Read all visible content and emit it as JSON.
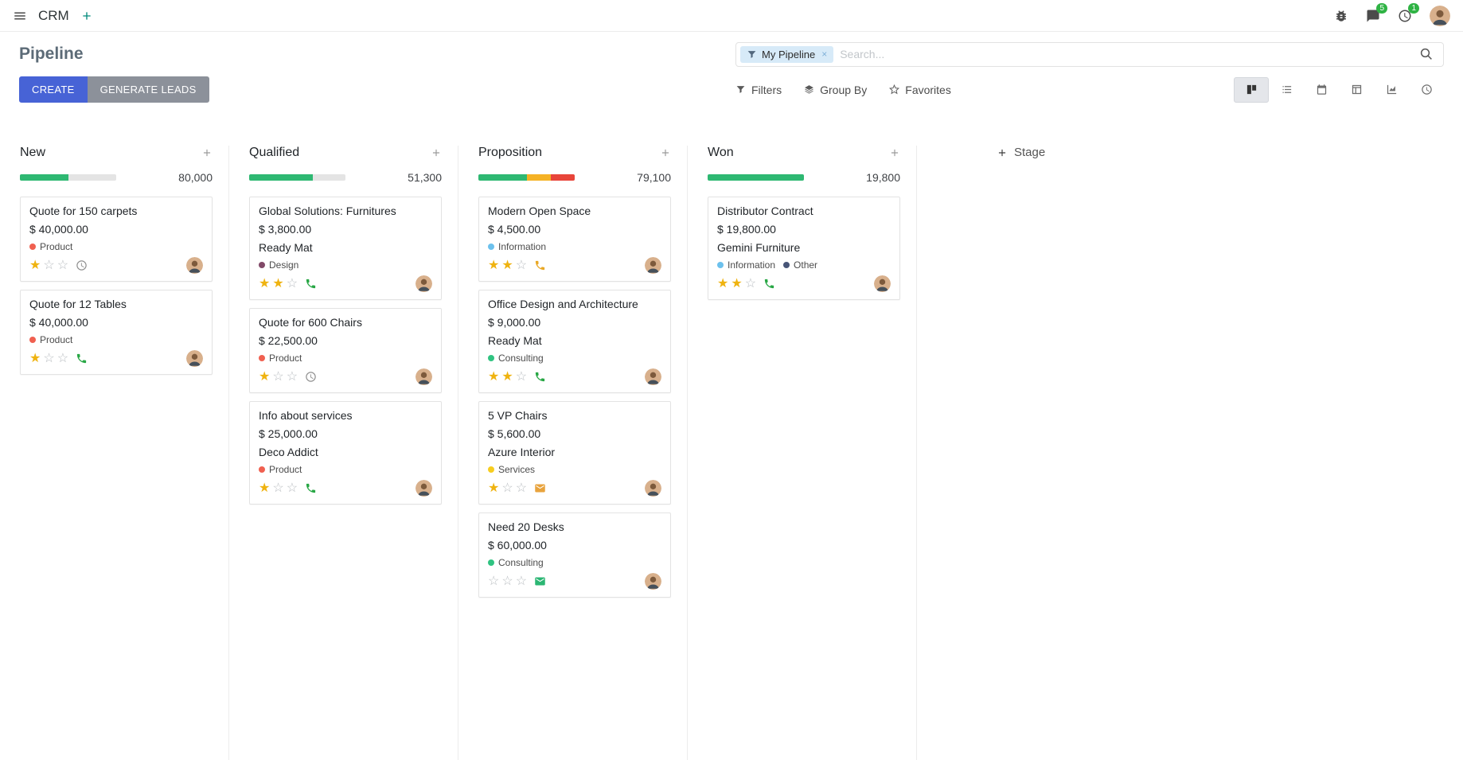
{
  "navbar": {
    "app_name": "CRM",
    "messages_badge": "5",
    "activities_badge": "1"
  },
  "control_panel": {
    "title": "Pipeline",
    "create_label": "CREATE",
    "generate_leads_label": "GENERATE LEADS",
    "search": {
      "facet_label": "My Pipeline",
      "remove": "×",
      "placeholder": "Search..."
    },
    "toolbar": {
      "filters": "Filters",
      "group_by": "Group By",
      "favorites": "Favorites"
    },
    "view_switcher": {
      "active": "kanban",
      "views": [
        "kanban",
        "list",
        "calendar",
        "pivot",
        "graph",
        "activity"
      ]
    }
  },
  "board": {
    "add_stage_label": "Stage",
    "columns": [
      {
        "name": "New",
        "total": "80,000",
        "progress": [
          {
            "color": "#2eb872",
            "width": "50%"
          }
        ],
        "cards": [
          {
            "title": "Quote for 150 carpets",
            "amount": "$ 40,000.00",
            "tags": [
              {
                "label": "Product",
                "color": "#f06050"
              }
            ],
            "stars": 1,
            "activity": {
              "type": "clock",
              "color": "#8f8f8f"
            }
          },
          {
            "title": "Quote for 12 Tables",
            "amount": "$ 40,000.00",
            "tags": [
              {
                "label": "Product",
                "color": "#f06050"
              }
            ],
            "stars": 1,
            "activity": {
              "type": "phone",
              "color": "#28a745"
            }
          }
        ]
      },
      {
        "name": "Qualified",
        "total": "51,300",
        "progress": [
          {
            "color": "#2eb872",
            "width": "66%"
          }
        ],
        "cards": [
          {
            "title": "Global Solutions: Furnitures",
            "amount": "$ 3,800.00",
            "company": "Ready Mat",
            "tags": [
              {
                "label": "Design",
                "color": "#814968"
              }
            ],
            "stars": 2,
            "activity": {
              "type": "phone",
              "color": "#28a745"
            }
          },
          {
            "title": "Quote for 600 Chairs",
            "amount": "$ 22,500.00",
            "tags": [
              {
                "label": "Product",
                "color": "#f06050"
              }
            ],
            "stars": 1,
            "activity": {
              "type": "clock",
              "color": "#8f8f8f"
            }
          },
          {
            "title": "Info about services",
            "amount": "$ 25,000.00",
            "company": "Deco Addict",
            "tags": [
              {
                "label": "Product",
                "color": "#f06050"
              }
            ],
            "stars": 1,
            "activity": {
              "type": "phone",
              "color": "#28a745"
            }
          }
        ]
      },
      {
        "name": "Proposition",
        "total": "79,100",
        "progress": [
          {
            "color": "#2eb872",
            "width": "50%"
          },
          {
            "color": "#f5b225",
            "width": "25%"
          },
          {
            "color": "#e8453a",
            "width": "25%"
          }
        ],
        "cards": [
          {
            "title": "Modern Open Space",
            "amount": "$ 4,500.00",
            "tags": [
              {
                "label": "Information",
                "color": "#6cc1ed"
              }
            ],
            "stars": 2,
            "activity": {
              "type": "phone",
              "color": "#e9a825"
            }
          },
          {
            "title": "Office Design and Architecture",
            "amount": "$ 9,000.00",
            "company": "Ready Mat",
            "tags": [
              {
                "label": "Consulting",
                "color": "#30c381"
              }
            ],
            "stars": 2,
            "activity": {
              "type": "phone",
              "color": "#28a745"
            }
          },
          {
            "title": "5 VP Chairs",
            "amount": "$ 5,600.00",
            "company": "Azure Interior",
            "tags": [
              {
                "label": "Services",
                "color": "#f7cd1f"
              }
            ],
            "stars": 1,
            "activity": {
              "type": "envelope",
              "color": "#e8a33d"
            }
          },
          {
            "title": "Need 20 Desks",
            "amount": "$ 60,000.00",
            "tags": [
              {
                "label": "Consulting",
                "color": "#30c381"
              }
            ],
            "stars": 0,
            "activity": {
              "type": "envelope",
              "color": "#2bb673"
            }
          }
        ]
      },
      {
        "name": "Won",
        "total": "19,800",
        "progress": [
          {
            "color": "#2eb872",
            "width": "100%"
          }
        ],
        "cards": [
          {
            "title": "Distributor Contract",
            "amount": "$ 19,800.00",
            "company": "Gemini Furniture",
            "tags": [
              {
                "label": "Information",
                "color": "#6cc1ed"
              },
              {
                "label": "Other",
                "color": "#475577"
              }
            ],
            "stars": 2,
            "activity": {
              "type": "phone",
              "color": "#28a745"
            }
          }
        ]
      }
    ]
  }
}
